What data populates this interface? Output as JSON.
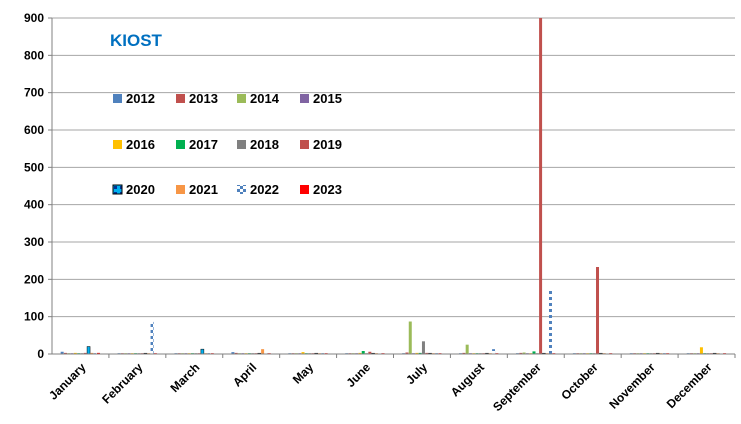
{
  "chart_data": {
    "type": "bar",
    "title": "KIOST",
    "title_color": "#0070C0",
    "xlabel": "",
    "ylabel": "",
    "ylim": [
      0,
      900
    ],
    "yticks": [
      "0",
      "100",
      "200",
      "300",
      "400",
      "500",
      "600",
      "700",
      "800",
      "900"
    ],
    "grid": true,
    "legend_placement": "upper-left, inside plot area, 3 rows of 4",
    "categories": [
      "January",
      "February",
      "March",
      "April",
      "May",
      "June",
      "July",
      "August",
      "September",
      "October",
      "November",
      "December"
    ],
    "series": [
      {
        "name": "2012",
        "color": "#4F81BD",
        "values": [
          6,
          2,
          2,
          5,
          1,
          1,
          2,
          2,
          2,
          2,
          2,
          2
        ]
      },
      {
        "name": "2013",
        "color": "#C0504D",
        "values": [
          3,
          2,
          2,
          3,
          1,
          2,
          4,
          3,
          3,
          2,
          1,
          2
        ]
      },
      {
        "name": "2014",
        "color": "#9BBB59",
        "values": [
          2,
          2,
          2,
          2,
          1,
          2,
          87,
          25,
          4,
          2,
          2,
          1
        ]
      },
      {
        "name": "2015",
        "color": "#8064A2",
        "values": [
          2,
          2,
          2,
          2,
          1,
          2,
          2,
          2,
          2,
          2,
          2,
          2
        ]
      },
      {
        "name": "2016",
        "color": "#FFC000",
        "values": [
          3,
          2,
          2,
          2,
          5,
          3,
          3,
          2,
          2,
          2,
          2,
          18
        ]
      },
      {
        "name": "2017",
        "color": "#00B050",
        "values": [
          2,
          2,
          2,
          2,
          2,
          8,
          3,
          2,
          7,
          2,
          2,
          2
        ]
      },
      {
        "name": "2018",
        "color": "#808080",
        "values": [
          2,
          2,
          2,
          2,
          2,
          2,
          34,
          2,
          2,
          2,
          2,
          2
        ]
      },
      {
        "name": "2019",
        "color": "#C0504D",
        "values": [
          3,
          2,
          2,
          2,
          2,
          6,
          3,
          2,
          900,
          233,
          2,
          2
        ]
      },
      {
        "name": "2020",
        "color": "#00B0F0",
        "values": [
          20,
          2,
          13,
          2,
          2,
          2,
          2,
          2,
          2,
          2,
          2,
          2
        ]
      },
      {
        "name": "2021",
        "color": "#F79646",
        "values": [
          3,
          2,
          2,
          13,
          2,
          2,
          2,
          2,
          2,
          2,
          2,
          2
        ]
      },
      {
        "name": "2022",
        "color": "#4BACC6",
        "values": [
          2,
          86,
          2,
          2,
          2,
          2,
          2,
          13,
          172,
          2,
          2,
          2
        ]
      },
      {
        "name": "2023",
        "color": "#FF0000",
        "values": [
          3,
          2,
          2,
          2,
          2,
          2,
          2,
          2,
          2,
          2,
          2,
          2
        ]
      }
    ]
  }
}
